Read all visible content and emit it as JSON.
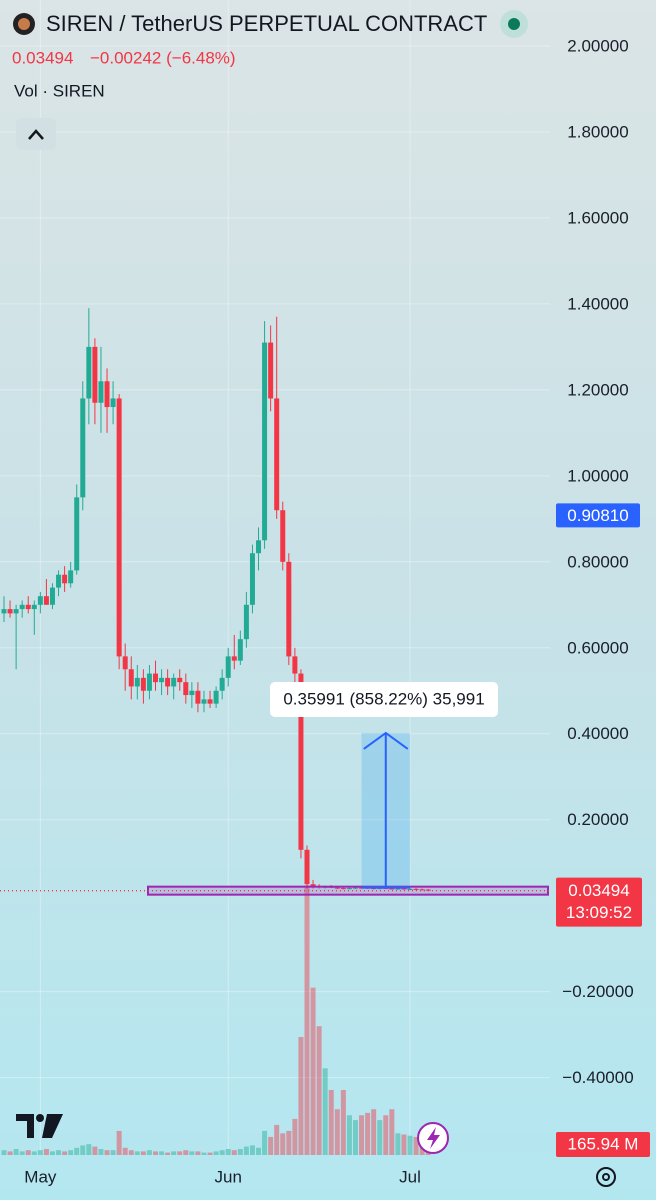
{
  "chart_data": {
    "type": "candlestick",
    "title": "SIREN / TetherUS PERPETUAL CONTRACT",
    "change": "−0.00242 (−6.48%)",
    "countdown": "13:09:52",
    "marker_price": {
      "value": 0.9081,
      "label": "0.90810"
    },
    "measure": {
      "label": "0.35991 (858.22%) 35,991",
      "from": 0.041937,
      "to": 0.401847
    },
    "up_color": "#22ab94",
    "down_color": "#f23645",
    "grid": true,
    "ylim": [
      -0.58,
      2.1
    ],
    "yticks": [
      {
        "value": 2.0,
        "label": "2.00000"
      },
      {
        "value": 1.8,
        "label": "1.80000"
      },
      {
        "value": 1.6,
        "label": "1.60000"
      },
      {
        "value": 1.4,
        "label": "1.40000"
      },
      {
        "value": 1.2,
        "label": "1.20000"
      },
      {
        "value": 1.0,
        "label": "1.00000"
      },
      {
        "value": 0.8,
        "label": "0.80000"
      },
      {
        "value": 0.6,
        "label": "0.60000"
      },
      {
        "value": 0.4,
        "label": "0.40000"
      },
      {
        "value": 0.2,
        "label": "0.20000"
      },
      {
        "value": -0.2,
        "label": "−0.20000"
      },
      {
        "value": -0.4,
        "label": "−0.40000"
      }
    ],
    "categories": [
      null,
      null,
      null,
      null,
      null,
      null,
      "May",
      null,
      null,
      null,
      null,
      null,
      null,
      null,
      null,
      null,
      null,
      null,
      null,
      null,
      null,
      null,
      null,
      null,
      null,
      null,
      null,
      null,
      null,
      null,
      null,
      null,
      null,
      null,
      null,
      null,
      null,
      "Jun",
      null,
      null,
      null,
      null,
      null,
      null,
      null,
      null,
      null,
      null,
      null,
      null,
      null,
      null,
      null,
      null,
      null,
      null,
      null,
      null,
      null,
      null,
      null,
      null,
      null,
      null,
      null,
      null,
      null,
      "Jul",
      null,
      null,
      null
    ],
    "open": [
      0.68,
      0.69,
      0.68,
      0.69,
      0.7,
      0.69,
      0.7,
      0.72,
      0.7,
      0.74,
      0.77,
      0.75,
      0.78,
      0.95,
      1.18,
      1.3,
      1.17,
      1.22,
      1.16,
      1.18,
      0.58,
      0.55,
      0.51,
      0.53,
      0.5,
      0.54,
      0.52,
      0.53,
      0.51,
      0.53,
      0.52,
      0.49,
      0.5,
      0.47,
      0.48,
      0.47,
      0.5,
      0.53,
      0.58,
      0.57,
      0.62,
      0.7,
      0.82,
      0.85,
      1.31,
      1.18,
      0.92,
      0.8,
      0.58,
      0.54,
      0.13,
      0.05,
      0.045,
      0.043,
      0.044,
      0.042,
      0.041,
      0.04,
      0.041,
      0.042,
      0.0419,
      0.041,
      0.04,
      0.041,
      0.04,
      0.039,
      0.04,
      0.038,
      0.039,
      0.038,
      0.03736
    ],
    "high": [
      0.72,
      0.71,
      0.7,
      0.71,
      0.72,
      0.71,
      0.73,
      0.76,
      0.75,
      0.78,
      0.79,
      0.8,
      0.98,
      1.22,
      1.39,
      1.32,
      1.3,
      1.25,
      1.22,
      1.19,
      0.61,
      0.58,
      0.56,
      0.55,
      0.56,
      0.57,
      0.55,
      0.55,
      0.54,
      0.55,
      0.54,
      0.52,
      0.52,
      0.5,
      0.5,
      0.51,
      0.55,
      0.6,
      0.63,
      0.64,
      0.73,
      0.84,
      0.88,
      1.36,
      1.35,
      1.37,
      0.94,
      0.82,
      0.6,
      0.55,
      0.14,
      0.06,
      0.05,
      0.047,
      0.048,
      0.046,
      0.044,
      0.043,
      0.045,
      0.046,
      0.045,
      0.044,
      0.043,
      0.044,
      0.043,
      0.042,
      0.042,
      0.041,
      0.041,
      0.04,
      0.039
    ],
    "low": [
      0.66,
      0.67,
      0.55,
      0.67,
      0.68,
      0.63,
      0.68,
      0.7,
      0.69,
      0.72,
      0.73,
      0.74,
      0.77,
      0.92,
      1.12,
      1.12,
      1.1,
      1.1,
      1.12,
      0.55,
      0.5,
      0.48,
      0.48,
      0.47,
      0.48,
      0.5,
      0.49,
      0.49,
      0.48,
      0.5,
      0.47,
      0.46,
      0.45,
      0.45,
      0.46,
      0.46,
      0.48,
      0.51,
      0.55,
      0.56,
      0.6,
      0.68,
      0.78,
      0.83,
      1.15,
      0.9,
      0.78,
      0.56,
      0.52,
      0.11,
      0.04,
      0.04,
      0.04,
      0.04,
      0.041,
      0.039,
      0.038,
      0.038,
      0.039,
      0.04,
      0.039,
      0.038,
      0.038,
      0.039,
      0.038,
      0.037,
      0.037,
      0.036,
      0.036,
      0.036,
      0.034
    ],
    "close": [
      0.69,
      0.68,
      0.69,
      0.7,
      0.69,
      0.7,
      0.72,
      0.7,
      0.74,
      0.77,
      0.75,
      0.78,
      0.95,
      1.18,
      1.3,
      1.17,
      1.22,
      1.16,
      1.18,
      0.58,
      0.55,
      0.51,
      0.53,
      0.5,
      0.54,
      0.52,
      0.53,
      0.51,
      0.53,
      0.52,
      0.49,
      0.5,
      0.47,
      0.48,
      0.47,
      0.5,
      0.53,
      0.58,
      0.57,
      0.62,
      0.7,
      0.82,
      0.85,
      1.31,
      1.18,
      0.92,
      0.8,
      0.58,
      0.54,
      0.13,
      0.05,
      0.045,
      0.043,
      0.044,
      0.042,
      0.041,
      0.04,
      0.041,
      0.042,
      0.0419,
      0.041,
      0.04,
      0.041,
      0.04,
      0.039,
      0.04,
      0.038,
      0.039,
      0.038,
      0.03736,
      0.03494
    ],
    "volume": {
      "title": "Vol · SIREN",
      "label": "165.94 M",
      "values": [
        40,
        30,
        50,
        30,
        40,
        30,
        40,
        50,
        30,
        40,
        30,
        40,
        60,
        80,
        90,
        70,
        50,
        40,
        40,
        200,
        60,
        40,
        30,
        30,
        40,
        30,
        30,
        20,
        30,
        30,
        40,
        30,
        30,
        20,
        20,
        30,
        40,
        50,
        40,
        50,
        70,
        80,
        60,
        200,
        150,
        250,
        180,
        200,
        300,
        980,
        2240,
        1390,
        1070,
        720,
        540,
        380,
        540,
        330,
        290,
        330,
        350,
        380,
        290,
        330,
        380,
        180,
        170,
        160,
        150,
        170,
        165.94
      ]
    },
    "y2lim": [
      0,
      2500
    ]
  }
}
